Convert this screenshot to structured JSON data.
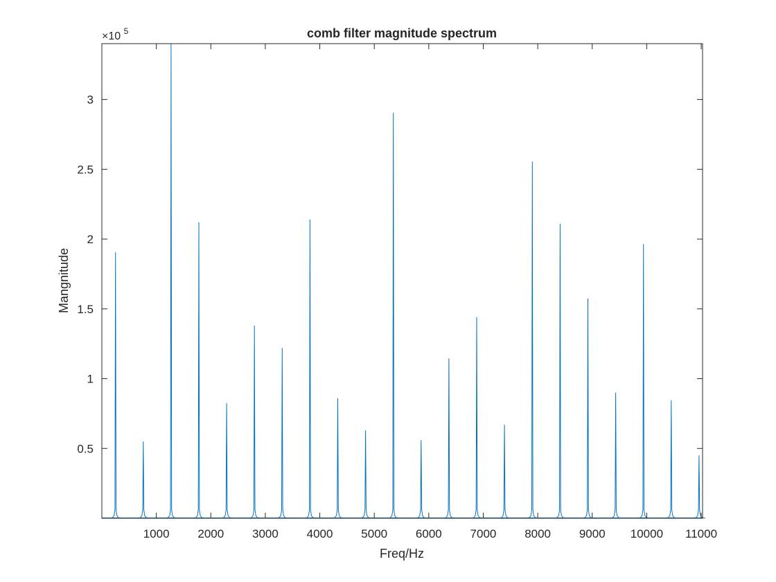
{
  "chart_data": {
    "type": "line",
    "title": "comb filter magnitude spectrum",
    "xlabel": "Freq/Hz",
    "ylabel": "Mangnitude",
    "y_exponent_label": "×10",
    "y_exponent_power": "5",
    "xlim": [
      0,
      11025
    ],
    "ylim": [
      0,
      340000
    ],
    "xticks": [
      1000,
      2000,
      3000,
      4000,
      5000,
      6000,
      7000,
      8000,
      9000,
      10000,
      11000
    ],
    "xtick_labels": [
      "1000",
      "2000",
      "3000",
      "4000",
      "5000",
      "6000",
      "7000",
      "8000",
      "9000",
      "10000",
      "11000"
    ],
    "yticks": [
      50000,
      100000,
      150000,
      200000,
      250000,
      300000
    ],
    "ytick_labels": [
      "0.5",
      "1",
      "1.5",
      "2",
      "2.5",
      "3"
    ],
    "grid": false,
    "line_color": "#0072BD",
    "peaks": [
      {
        "x": 250,
        "y": 190500
      },
      {
        "x": 760,
        "y": 55000
      },
      {
        "x": 1270,
        "y": 340000
      },
      {
        "x": 1780,
        "y": 212000
      },
      {
        "x": 2290,
        "y": 82500
      },
      {
        "x": 2800,
        "y": 138000
      },
      {
        "x": 3310,
        "y": 122000
      },
      {
        "x": 3820,
        "y": 214000
      },
      {
        "x": 4330,
        "y": 86000
      },
      {
        "x": 4840,
        "y": 63000
      },
      {
        "x": 5350,
        "y": 290500
      },
      {
        "x": 5860,
        "y": 56000
      },
      {
        "x": 6370,
        "y": 114500
      },
      {
        "x": 6880,
        "y": 144000
      },
      {
        "x": 7390,
        "y": 67000
      },
      {
        "x": 7900,
        "y": 255500
      },
      {
        "x": 8410,
        "y": 211000
      },
      {
        "x": 8920,
        "y": 157500
      },
      {
        "x": 9430,
        "y": 90000
      },
      {
        "x": 9940,
        "y": 196500
      },
      {
        "x": 10450,
        "y": 84500
      },
      {
        "x": 10960,
        "y": 45000
      }
    ]
  }
}
